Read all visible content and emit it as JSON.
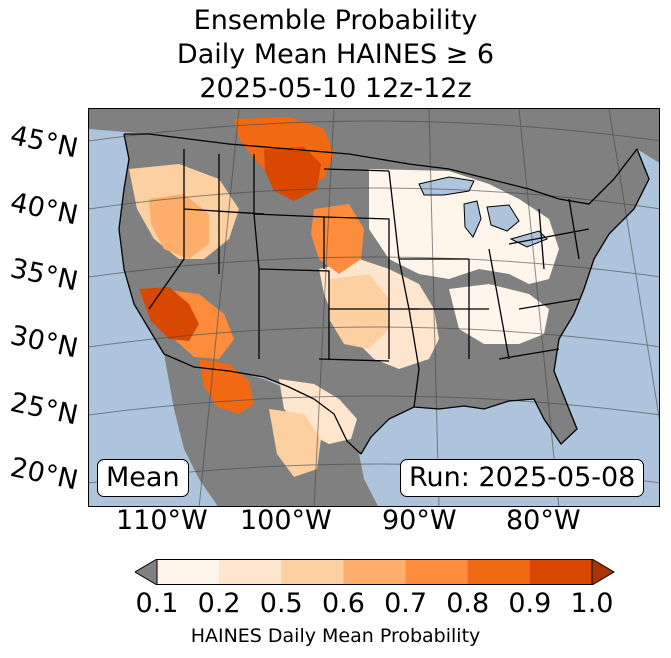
{
  "title": {
    "line1": "Ensemble Probability",
    "line2": "Daily Mean HAINES ≥ 6",
    "line3": "2025-05-10 12z-12z"
  },
  "map": {
    "lat_labels": [
      "45°N",
      "40°N",
      "35°N",
      "30°N",
      "25°N",
      "20°N"
    ],
    "lon_labels": [
      "110°W",
      "100°W",
      "90°W",
      "80°W"
    ],
    "stat_box": "Mean",
    "run_box": "Run: 2025-05-08",
    "colors": {
      "ocean": "#aec4dc",
      "no_data": "#808080",
      "prob_0_1": "#fff5eb",
      "prob_0_2": "#fee6ce",
      "prob_0_5": "#fdd0a2",
      "prob_0_6": "#fdae6b",
      "prob_0_7": "#fd8d3c",
      "prob_0_8": "#f16913",
      "prob_0_9": "#d94801"
    }
  },
  "colorbar": {
    "ticks": [
      "0.1",
      "0.2",
      "0.5",
      "0.6",
      "0.7",
      "0.8",
      "0.9",
      "1.0"
    ],
    "colors": [
      "#fff5eb",
      "#fee6ce",
      "#fdd0a2",
      "#fdae6b",
      "#fd8d3c",
      "#f16913",
      "#d94801"
    ],
    "under_color": "#808080",
    "over_color": "#a63603",
    "label": "HAINES Daily Mean Probability"
  }
}
